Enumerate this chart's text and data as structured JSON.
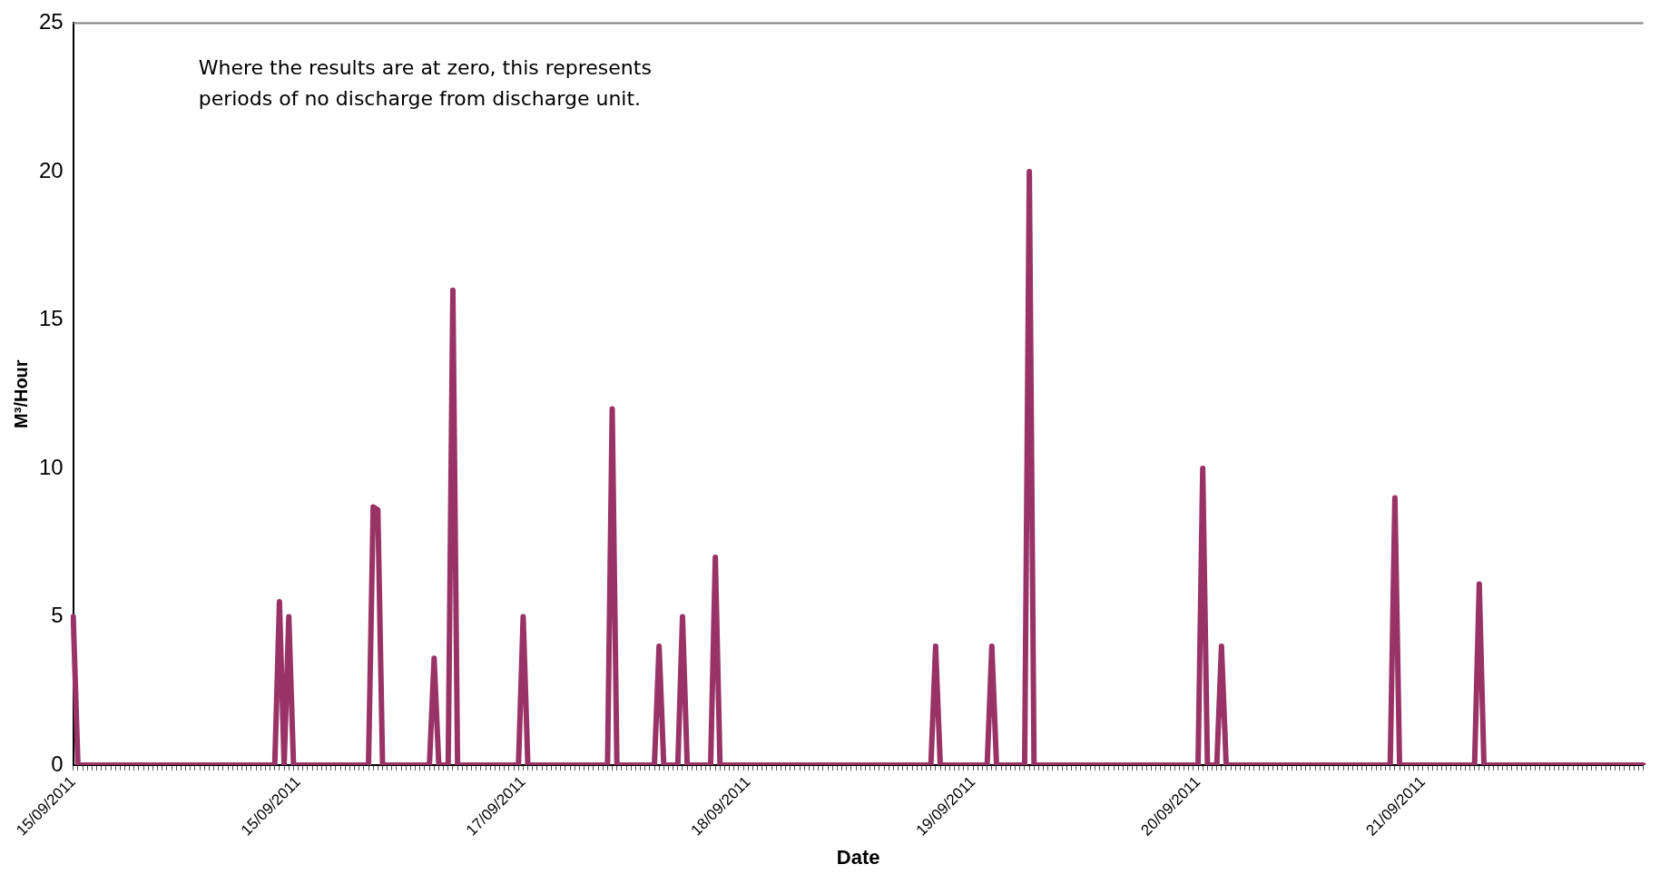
{
  "chart_data": {
    "type": "line",
    "xlabel": "Date",
    "ylabel": "M³/Hour",
    "annotations": [
      "Where the results are at zero, this represents periods of no discharge from discharge unit."
    ],
    "ylim": [
      0,
      25
    ],
    "yticks": [
      0,
      5,
      10,
      15,
      20,
      25
    ],
    "categories": [
      "15/09/2011",
      null,
      null,
      null,
      null,
      null,
      null,
      null,
      null,
      null,
      null,
      null,
      null,
      null,
      null,
      null,
      null,
      null,
      null,
      null,
      null,
      null,
      null,
      null,
      null,
      null,
      null,
      null,
      null,
      null,
      null,
      null,
      null,
      null,
      null,
      null,
      null,
      null,
      null,
      null,
      null,
      null,
      null,
      null,
      null,
      null,
      null,
      null,
      "15/09/2011",
      null,
      null,
      null,
      null,
      null,
      null,
      null,
      null,
      null,
      null,
      null,
      null,
      null,
      null,
      null,
      null,
      null,
      null,
      null,
      null,
      null,
      null,
      null,
      null,
      null,
      null,
      null,
      null,
      null,
      null,
      null,
      null,
      null,
      null,
      null,
      null,
      null,
      null,
      null,
      null,
      null,
      null,
      null,
      null,
      null,
      null,
      null,
      "17/09/2011",
      null,
      null,
      null,
      null,
      null,
      null,
      null,
      null,
      null,
      null,
      null,
      null,
      null,
      null,
      null,
      null,
      null,
      null,
      null,
      null,
      null,
      null,
      null,
      null,
      null,
      null,
      null,
      null,
      null,
      null,
      null,
      null,
      null,
      null,
      null,
      null,
      null,
      null,
      null,
      null,
      null,
      null,
      null,
      null,
      null,
      null,
      null,
      "18/09/2011",
      null,
      null,
      null,
      null,
      null,
      null,
      null,
      null,
      null,
      null,
      null,
      null,
      null,
      null,
      null,
      null,
      null,
      null,
      null,
      null,
      null,
      null,
      null,
      null,
      null,
      null,
      null,
      null,
      null,
      null,
      null,
      null,
      null,
      null,
      null,
      null,
      null,
      null,
      null,
      null,
      null,
      null,
      null,
      null,
      null,
      null,
      null,
      "19/09/2011",
      null,
      null,
      null,
      null,
      null,
      null,
      null,
      null,
      null,
      null,
      null,
      null,
      null,
      null,
      null,
      null,
      null,
      null,
      null,
      null,
      null,
      null,
      null,
      null,
      null,
      null,
      null,
      null,
      null,
      null,
      null,
      null,
      null,
      null,
      null,
      null,
      null,
      null,
      null,
      null,
      null,
      null,
      null,
      null,
      null,
      null,
      null,
      "20/09/2011",
      null,
      null,
      null,
      null,
      null,
      null,
      null,
      null,
      null,
      null,
      null,
      null,
      null,
      null,
      null,
      null,
      null,
      null,
      null,
      null,
      null,
      null,
      null,
      null,
      null,
      null,
      null,
      null,
      null,
      null,
      null,
      null,
      null,
      null,
      null,
      null,
      null,
      null,
      null,
      null,
      null,
      null,
      null,
      null,
      null,
      null,
      null,
      "21/09/2011",
      null,
      null,
      null,
      null,
      null,
      null,
      null,
      null,
      null,
      null,
      null,
      null,
      null,
      null,
      null,
      null,
      null,
      null,
      null,
      null,
      null,
      null,
      null,
      null,
      null,
      null,
      null,
      null,
      null,
      null,
      null,
      null,
      null,
      null,
      null,
      null,
      null,
      null,
      null,
      null,
      null,
      null,
      null,
      null,
      null,
      null,
      null
    ],
    "series": [
      {
        "color": "#993366",
        "values": [
          5,
          0,
          0,
          0,
          0,
          0,
          0,
          0,
          0,
          0,
          0,
          0,
          0,
          0,
          0,
          0,
          0,
          0,
          0,
          0,
          0,
          0,
          0,
          0,
          0,
          0,
          0,
          0,
          0,
          0,
          0,
          0,
          0,
          0,
          0,
          0,
          0,
          0,
          0,
          0,
          0,
          0,
          0,
          0,
          5.5,
          0,
          5,
          0,
          0,
          0,
          0,
          0,
          0,
          0,
          0,
          0,
          0,
          0,
          0,
          0,
          0,
          0,
          0,
          0,
          8.7,
          8.6,
          0,
          0,
          0,
          0,
          0,
          0,
          0,
          0,
          0,
          0,
          0,
          3.6,
          0,
          0,
          0,
          16,
          0,
          0,
          0,
          0,
          0,
          0,
          0,
          0,
          0,
          0,
          0,
          0,
          0,
          0,
          5,
          0,
          0,
          0,
          0,
          0,
          0,
          0,
          0,
          0,
          0,
          0,
          0,
          0,
          0,
          0,
          0,
          0,
          0,
          12,
          0,
          0,
          0,
          0,
          0,
          0,
          0,
          0,
          0,
          4,
          0,
          0,
          0,
          0,
          5,
          0,
          0,
          0,
          0,
          0,
          0,
          7,
          0,
          0,
          0,
          0,
          0,
          0,
          0,
          0,
          0,
          0,
          0,
          0,
          0,
          0,
          0,
          0,
          0,
          0,
          0,
          0,
          0,
          0,
          0,
          0,
          0,
          0,
          0,
          0,
          0,
          0,
          0,
          0,
          0,
          0,
          0,
          0,
          0,
          0,
          0,
          0,
          0,
          0,
          0,
          0,
          0,
          0,
          4,
          0,
          0,
          0,
          0,
          0,
          0,
          0,
          0,
          0,
          0,
          0,
          4,
          0,
          0,
          0,
          0,
          0,
          0,
          0,
          20,
          0,
          0,
          0,
          0,
          0,
          0,
          0,
          0,
          0,
          0,
          0,
          0,
          0,
          0,
          0,
          0,
          0,
          0,
          0,
          0,
          0,
          0,
          0,
          0,
          0,
          0,
          0,
          0,
          0,
          0,
          0,
          0,
          0,
          0,
          0,
          0,
          10,
          0,
          0,
          0,
          4,
          0,
          0,
          0,
          0,
          0,
          0,
          0,
          0,
          0,
          0,
          0,
          0,
          0,
          0,
          0,
          0,
          0,
          0,
          0,
          0,
          0,
          0,
          0,
          0,
          0,
          0,
          0,
          0,
          0,
          0,
          0,
          0,
          0,
          0,
          0,
          0,
          9,
          0,
          0,
          0,
          0,
          0,
          0,
          0,
          0,
          0,
          0,
          0,
          0,
          0,
          0,
          0,
          0,
          0,
          6.1,
          0,
          0,
          0,
          0,
          0,
          0,
          0,
          0,
          0,
          0,
          0,
          0,
          0,
          0,
          0,
          0,
          0,
          0,
          0,
          0,
          0,
          0,
          0,
          0,
          0,
          0,
          0,
          0,
          0,
          0,
          0,
          0,
          0,
          0,
          0
        ]
      }
    ]
  }
}
